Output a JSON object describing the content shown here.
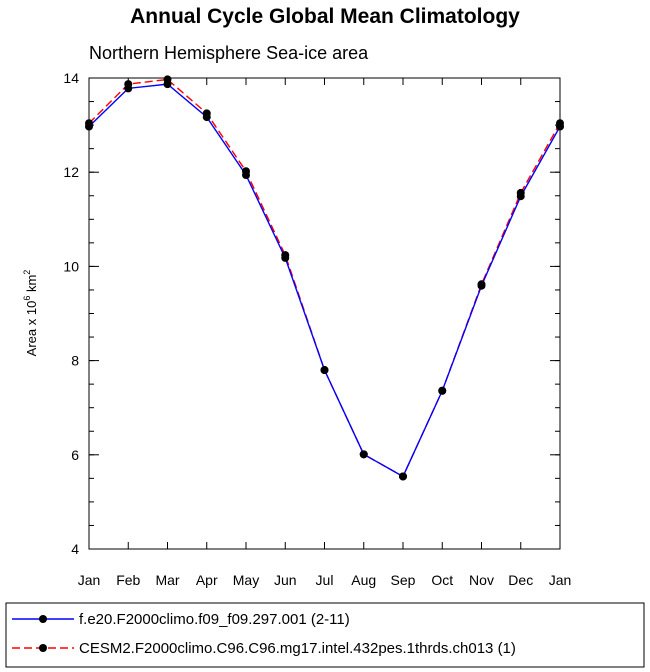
{
  "chart_data": {
    "type": "line",
    "title": "Annual Cycle Global Mean Climatology",
    "subtitle": "Northern Hemisphere Sea-ice area",
    "ylabel": {
      "prefix": "Area x 10",
      "exponent": "6",
      "unit": " km",
      "unit_exponent": "2"
    },
    "categories": [
      "Jan",
      "Feb",
      "Mar",
      "Apr",
      "May",
      "Jun",
      "Jul",
      "Aug",
      "Sep",
      "Oct",
      "Nov",
      "Dec",
      "Jan"
    ],
    "ylim": [
      4,
      14
    ],
    "yticks": [
      "4",
      "6",
      "8",
      "10",
      "12",
      "14"
    ],
    "legend_position": "bottom",
    "series": [
      {
        "name": "f.e20.F2000climo.f09_f09.297.001 (2-11)",
        "color": "#0000ff",
        "line_style": "solid",
        "values": [
          12.97,
          13.78,
          13.87,
          13.17,
          11.94,
          10.18,
          7.8,
          6.01,
          5.54,
          7.36,
          9.59,
          11.49,
          12.97
        ]
      },
      {
        "name": "CESM2.F2000climo.C96.C96.mg17.intel.432pes.1thrds.ch013 (1)",
        "color": "#ff0000",
        "line_style": "dashed",
        "values": [
          13.04,
          13.87,
          13.97,
          13.25,
          12.02,
          10.24,
          7.8,
          6.01,
          5.54,
          7.36,
          9.62,
          11.56,
          13.04
        ]
      }
    ]
  }
}
